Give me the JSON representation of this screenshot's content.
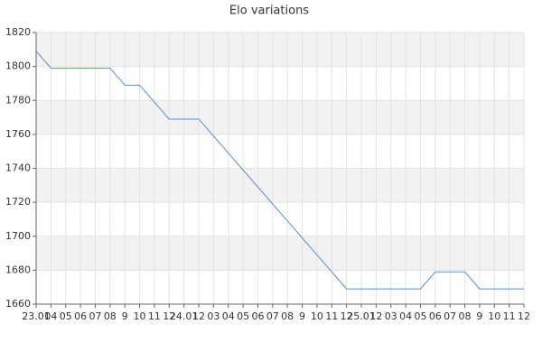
{
  "chart_data": {
    "type": "line",
    "title": "Elo variations",
    "categories": [
      "23.01",
      "04",
      "05",
      "06",
      "07",
      "08",
      "9",
      "10",
      "11",
      "12",
      "24.01",
      "12",
      "03",
      "04",
      "05",
      "06",
      "07",
      "08",
      "9",
      "10",
      "11",
      "12",
      "25.01",
      "12",
      "03",
      "04",
      "05",
      "06",
      "07",
      "08",
      "9",
      "10",
      "11",
      "12"
    ],
    "series": [
      {
        "color": "#5b8fd9",
        "values": [
          1809,
          1799,
          1799,
          1799,
          1799,
          1799,
          1789,
          1789,
          1779,
          1769,
          1769,
          1769,
          1759,
          1749,
          1739,
          1729,
          1719,
          1709,
          1699,
          1689,
          1679,
          1669,
          1669,
          1669,
          1669,
          1669,
          1669,
          1679,
          1679,
          1679,
          1669,
          1669,
          1669,
          1669
        ]
      }
    ],
    "ylim": [
      1660,
      1820
    ],
    "yticks": [
      1660,
      1680,
      1700,
      1720,
      1740,
      1760,
      1780,
      1800,
      1820
    ],
    "grid": true,
    "band_color": "#f2f2f2"
  }
}
